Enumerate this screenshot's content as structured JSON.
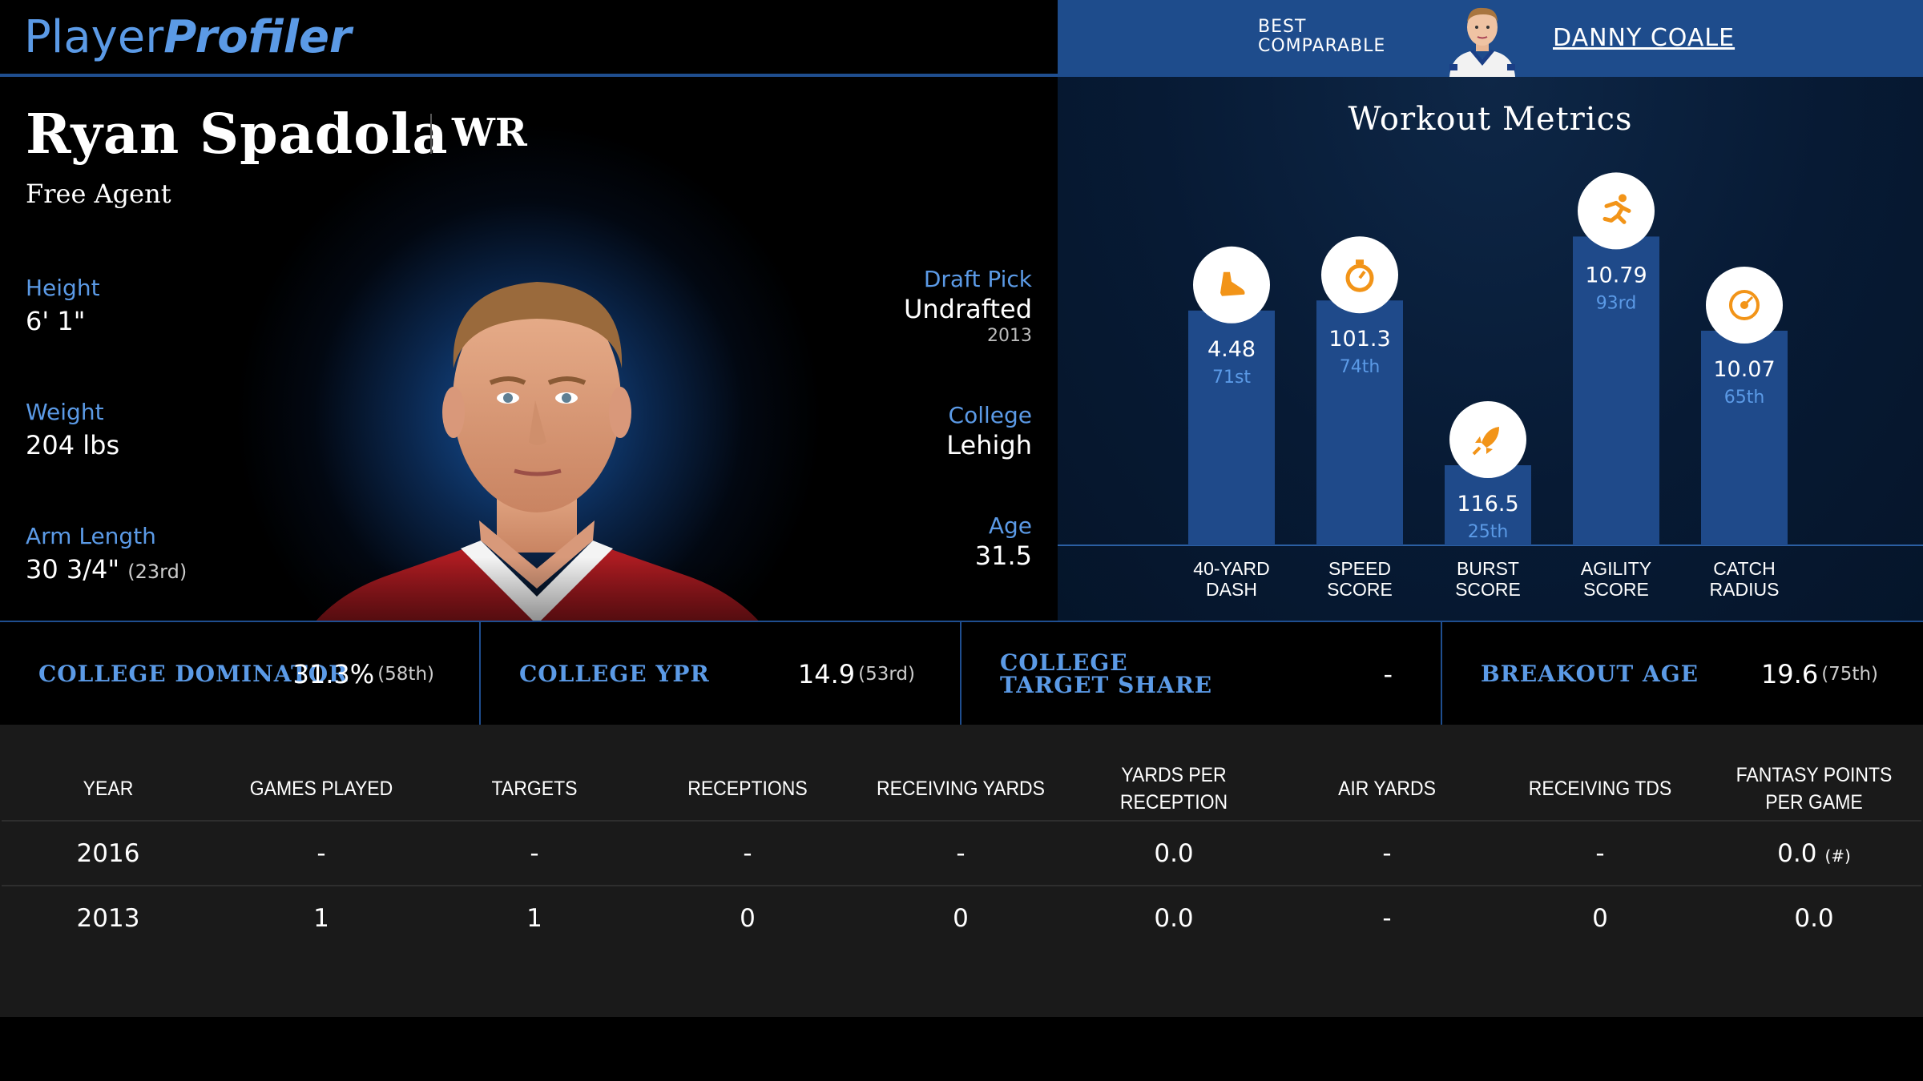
{
  "brand": {
    "logo_part1": "Player",
    "logo_part2": "Profiler"
  },
  "comparable": {
    "label_line1": "BEST",
    "label_line2": "COMPARABLE",
    "name": "DANNY COALE"
  },
  "player": {
    "name": "Ryan Spadola",
    "position": "WR",
    "team": "Free Agent",
    "height_label": "Height",
    "height": "6' 1\"",
    "weight_label": "Weight",
    "weight": "204 lbs",
    "arm_label": "Arm Length",
    "arm": "30 3/4\"",
    "arm_rank": "(23rd)",
    "draft_label": "Draft Pick",
    "draft": "Undrafted",
    "draft_year": "2013",
    "college_label": "College",
    "college": "Lehigh",
    "age_label": "Age",
    "age": "31.5"
  },
  "workout": {
    "title": "Workout Metrics",
    "accent": "#f29418",
    "bar_color": "#1f4a8a",
    "metrics": [
      {
        "label1": "40-YARD",
        "label2": "DASH",
        "value": "4.48",
        "rank": "71st",
        "percentile": 71,
        "icon": "shoe-icon"
      },
      {
        "label1": "SPEED",
        "label2": "SCORE",
        "value": "101.3",
        "rank": "74th",
        "percentile": 74,
        "icon": "stopwatch-icon"
      },
      {
        "label1": "BURST",
        "label2": "SCORE",
        "value": "116.5",
        "rank": "25th",
        "percentile": 25,
        "icon": "rocket-icon"
      },
      {
        "label1": "AGILITY",
        "label2": "SCORE",
        "value": "10.79",
        "rank": "93rd",
        "percentile": 93,
        "icon": "runner-icon"
      },
      {
        "label1": "CATCH",
        "label2": "RADIUS",
        "value": "10.07",
        "rank": "65th",
        "percentile": 65,
        "icon": "target-icon"
      }
    ]
  },
  "stats": [
    {
      "label": "COLLEGE DOMINATOR",
      "value": "31.3%",
      "rank": "(58th)"
    },
    {
      "label": "COLLEGE YPR",
      "value": "14.9",
      "rank": "(53rd)"
    },
    {
      "label": "COLLEGE TARGET SHARE",
      "value": "-",
      "rank": ""
    },
    {
      "label": "BREAKOUT AGE",
      "value": "19.6",
      "rank": "(75th)"
    }
  ],
  "table": {
    "headers": [
      "YEAR",
      "GAMES PLAYED",
      "TARGETS",
      "RECEPTIONS",
      "RECEIVING YARDS",
      "YARDS PER RECEPTION",
      "AIR YARDS",
      "RECEIVING TDS",
      "FANTASY POINTS PER GAME"
    ],
    "rows": [
      [
        "2016",
        "-",
        "-",
        "-",
        "-",
        "0.0",
        "-",
        "-",
        "0.0"
      ],
      [
        "2013",
        "1",
        "1",
        "0",
        "0",
        "0.0",
        "-",
        "0",
        "0.0"
      ]
    ],
    "footnote_mark": "(#)"
  }
}
